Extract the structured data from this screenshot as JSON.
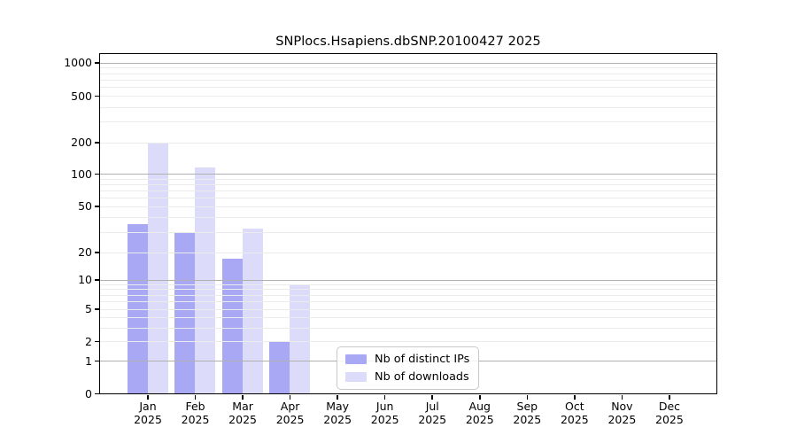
{
  "chart_data": {
    "type": "bar",
    "title": "SNPlocs.Hsapiens.dbSNP.20100427 2025",
    "categories": [
      "Jan",
      "Feb",
      "Mar",
      "Apr",
      "May",
      "Jun",
      "Jul",
      "Aug",
      "Sep",
      "Oct",
      "Nov",
      "Dec"
    ],
    "category_year": "2025",
    "series": [
      {
        "name": "Nb of distinct IPs",
        "color": "#a8a8f5",
        "values": [
          35,
          30,
          17,
          2,
          0,
          0,
          0,
          0,
          0,
          0,
          0,
          0
        ]
      },
      {
        "name": "Nb of downloads",
        "color": "#dcdcfa",
        "values": [
          195,
          115,
          32,
          9,
          0,
          0,
          0,
          0,
          0,
          0,
          0,
          0
        ]
      }
    ],
    "y_axis": {
      "scale": "log10(1+x)",
      "tick_values": [
        0,
        1,
        2,
        5,
        10,
        20,
        50,
        100,
        200,
        500,
        1000
      ],
      "major_grid_values": [
        1,
        10,
        100,
        1000
      ],
      "minor_grid_values": [
        2,
        3,
        4,
        5,
        6,
        7,
        8,
        9,
        20,
        30,
        40,
        50,
        60,
        70,
        80,
        90,
        200,
        300,
        400,
        500,
        600,
        700,
        800,
        900
      ],
      "range_top_value": 1200
    },
    "x_axis": {
      "tick_count": 12
    },
    "grid": true,
    "legend": {
      "position": "lower-center-inside"
    },
    "colors": {
      "grid_major": "#b0b0b0",
      "grid_minor": "#ebebeb",
      "axis": "#000000",
      "background": "#ffffff"
    }
  }
}
